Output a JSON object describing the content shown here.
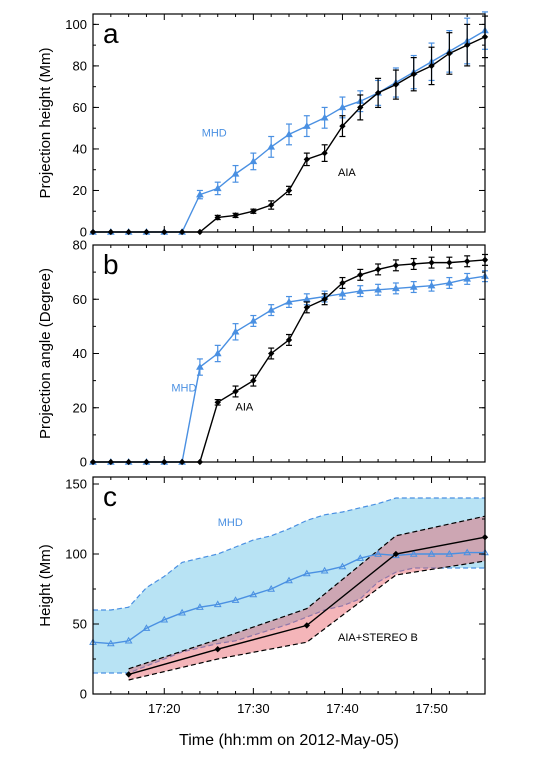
{
  "chart_data": [
    {
      "type": "line",
      "panel_label": "a",
      "ylabel": "Projection height (Mm)",
      "xlim": [
        12,
        56
      ],
      "ylim": [
        0,
        105
      ],
      "yticks": [
        0,
        20,
        40,
        60,
        80,
        100
      ],
      "series": [
        {
          "name": "MHD",
          "color": "#4a90e2",
          "marker": "triangle",
          "x": [
            12,
            14,
            16,
            18,
            20,
            22,
            24,
            26,
            28,
            30,
            32,
            34,
            36,
            38,
            40,
            42,
            44,
            46,
            48,
            50,
            52,
            54,
            56
          ],
          "y": [
            0,
            0,
            0,
            0,
            0,
            0,
            18,
            21,
            28,
            34,
            41,
            47,
            51,
            55,
            60,
            63,
            67,
            72,
            77,
            82,
            87,
            92,
            97
          ],
          "err": [
            0,
            0,
            0,
            0,
            0,
            0,
            2,
            3,
            4,
            4,
            5,
            5,
            5,
            5,
            5,
            5,
            6,
            7,
            8,
            9,
            10,
            11,
            9
          ]
        },
        {
          "name": "AIA",
          "color": "#000000",
          "marker": "diamond",
          "x": [
            12,
            14,
            16,
            18,
            20,
            22,
            24,
            26,
            28,
            30,
            32,
            34,
            36,
            38,
            40,
            42,
            44,
            46,
            48,
            50,
            52,
            54,
            56
          ],
          "y": [
            0,
            0,
            0,
            0,
            0,
            0,
            0,
            7,
            8,
            10,
            13,
            20,
            35,
            38,
            51,
            60,
            67,
            71,
            76,
            80,
            86,
            90,
            94
          ],
          "err": [
            0,
            0,
            0,
            0,
            0,
            0,
            0,
            1,
            1,
            1,
            2,
            2,
            3,
            4,
            5,
            6,
            7,
            7,
            8,
            9,
            10,
            10,
            10
          ]
        }
      ],
      "annotations": [
        {
          "text": "MHD",
          "x": 24.2,
          "y": 46,
          "color": "#4a90e2"
        },
        {
          "text": "AIA",
          "x": 39.5,
          "y": 27,
          "color": "#000000"
        }
      ]
    },
    {
      "type": "line",
      "panel_label": "b",
      "ylabel": "Projection angle (Degree)",
      "xlim": [
        12,
        56
      ],
      "ylim": [
        0,
        80
      ],
      "yticks": [
        0,
        20,
        40,
        60,
        80
      ],
      "series": [
        {
          "name": "MHD",
          "color": "#4a90e2",
          "marker": "triangle",
          "x": [
            12,
            14,
            16,
            18,
            20,
            22,
            24,
            26,
            28,
            30,
            32,
            34,
            36,
            38,
            40,
            42,
            44,
            46,
            48,
            50,
            52,
            54,
            56
          ],
          "y": [
            0,
            0,
            0,
            0,
            0,
            0,
            35,
            40,
            48,
            52,
            56,
            59,
            60,
            61,
            62,
            63,
            63.5,
            64,
            64.5,
            65,
            66,
            67.5,
            68.5
          ],
          "err": [
            0,
            0,
            0,
            0,
            0,
            0,
            3,
            3,
            3,
            2,
            2,
            2,
            2,
            2,
            2,
            2,
            2,
            2,
            2,
            2,
            2,
            2,
            2
          ]
        },
        {
          "name": "AIA",
          "color": "#000000",
          "marker": "diamond",
          "x": [
            12,
            14,
            16,
            18,
            20,
            22,
            24,
            26,
            28,
            30,
            32,
            34,
            36,
            38,
            40,
            42,
            44,
            46,
            48,
            50,
            52,
            54,
            56
          ],
          "y": [
            0,
            0,
            0,
            0,
            0,
            0,
            0,
            22,
            26,
            30,
            40,
            45,
            57,
            60,
            66,
            69,
            71,
            72.5,
            73,
            73.5,
            73.5,
            74,
            74.5
          ],
          "err": [
            0,
            0,
            0,
            0,
            0,
            0,
            0,
            1,
            2,
            2,
            2,
            2,
            2,
            2,
            2,
            2,
            2,
            2,
            2,
            2,
            2,
            2,
            2
          ]
        }
      ],
      "annotations": [
        {
          "text": "MHD",
          "x": 20.8,
          "y": 26,
          "color": "#4a90e2"
        },
        {
          "text": "AIA",
          "x": 28.0,
          "y": 19,
          "color": "#000000"
        }
      ]
    },
    {
      "type": "area",
      "panel_label": "c",
      "ylabel": "Height (Mm)",
      "xlabel": "Time (hh:mm on 2012-May-05)",
      "xlim": [
        12,
        56
      ],
      "ylim": [
        0,
        155
      ],
      "yticks": [
        0,
        50,
        100,
        150
      ],
      "xticks": [
        20,
        30,
        40,
        50
      ],
      "xtick_labels": [
        "17:20",
        "17:30",
        "17:40",
        "17:50"
      ],
      "series": [
        {
          "name": "MHD",
          "color": "#4a90e2",
          "marker": "triangle",
          "x": [
            12,
            14,
            16,
            18,
            20,
            22,
            24,
            26,
            28,
            30,
            32,
            34,
            36,
            38,
            40,
            42,
            44,
            46,
            48,
            50,
            52,
            54,
            56
          ],
          "y": [
            37,
            36,
            38,
            47,
            53,
            58,
            62,
            64,
            67,
            71,
            75,
            81,
            86,
            88,
            91,
            97,
            100,
            99,
            100,
            100,
            100,
            101,
            101
          ],
          "band_upper": [
            60,
            60,
            62,
            76,
            84,
            94,
            97,
            100,
            105,
            110,
            113,
            118,
            124,
            128,
            130,
            133,
            136,
            140,
            140,
            140,
            140,
            140,
            140
          ],
          "band_lower": [
            15,
            15,
            15,
            20,
            25,
            30,
            33,
            36,
            38,
            42,
            46,
            50,
            55,
            60,
            63,
            68,
            80,
            87,
            90,
            90,
            90,
            90,
            90
          ]
        },
        {
          "name": "AIA+STEREO B",
          "color": "#000000",
          "marker": "diamond",
          "x": [
            16,
            26,
            36,
            46,
            56
          ],
          "y": [
            14,
            32,
            49,
            100,
            112
          ],
          "band_upper": [
            18,
            39,
            61,
            113,
            127
          ],
          "band_lower": [
            10,
            25,
            37,
            85,
            95
          ]
        }
      ],
      "annotations": [
        {
          "text": "MHD",
          "x": 26.0,
          "y": 120,
          "color": "#4a90e2"
        },
        {
          "text": "AIA+STEREO B",
          "x": 39.5,
          "y": 38,
          "color": "#000000"
        }
      ]
    }
  ],
  "colors": {
    "mhd": "#4a90e2",
    "mhd_band": "#b8e3f4",
    "aia": "#000000",
    "aia_band": "rgba(230,90,100,0.45)"
  }
}
